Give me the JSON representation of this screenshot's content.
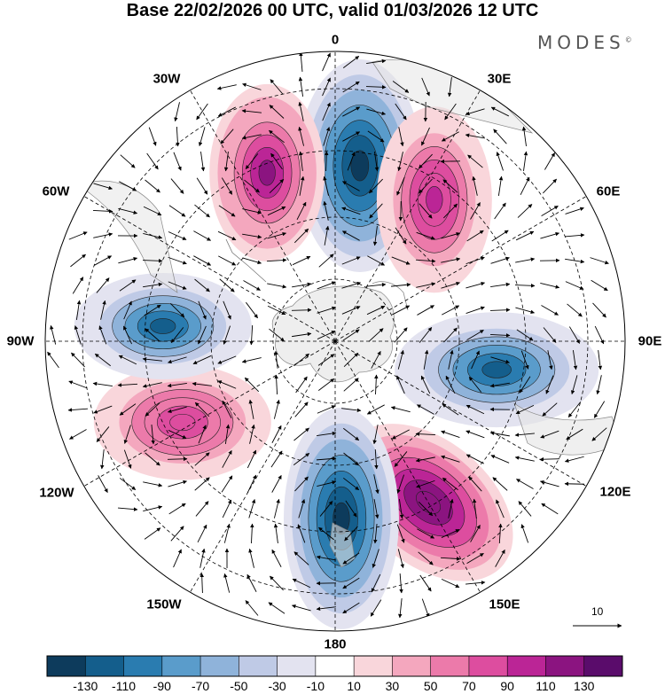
{
  "title": "Base 22/02/2026 00 UTC, valid 01/03/2026 12 UTC",
  "logo": "MODES",
  "logo_mark": "©",
  "longitude_labels": {
    "lon_0": "0",
    "lon_30e": "30E",
    "lon_60e": "60E",
    "lon_90e": "90E",
    "lon_120e": "120E",
    "lon_150e": "150E",
    "lon_180": "180",
    "lon_150w": "150W",
    "lon_120w": "120W",
    "lon_90w": "90W",
    "lon_60w": "60W",
    "lon_30w": "30W"
  },
  "reference_vector_label": "10",
  "colorbar": {
    "labels": [
      "-130",
      "-110",
      "-90",
      "-70",
      "-50",
      "-30",
      "-10",
      "10",
      "30",
      "50",
      "70",
      "90",
      "110",
      "130"
    ],
    "colors": [
      "#0d3b5c",
      "#145e8c",
      "#2a7cb0",
      "#5a9ccb",
      "#8fb3da",
      "#bfcae6",
      "#e3e3f0",
      "#ffffff",
      "#f9d6db",
      "#f4a7be",
      "#ec7aaa",
      "#dd4d9f",
      "#bb2596",
      "#8b1480",
      "#5a0c6b"
    ]
  },
  "chart_data": {
    "type": "polar-stereographic-map",
    "projection": "South polar stereographic",
    "base_time": "22/02/2026 00 UTC",
    "valid_time": "01/03/2026 12 UTC",
    "field": "anomaly (shaded) with wind vectors",
    "contour_levels": [
      -130,
      -110,
      -90,
      -70,
      -50,
      -30,
      -10,
      10,
      30,
      50,
      70,
      90,
      110,
      130
    ],
    "anomaly_centers": [
      {
        "sign": "negative",
        "peak": -130,
        "longitude_deg": 8
      },
      {
        "sign": "positive",
        "peak": 100,
        "longitude_deg": 35
      },
      {
        "sign": "negative",
        "peak": -110,
        "longitude_deg": 100
      },
      {
        "sign": "positive",
        "peak": 130,
        "longitude_deg": 150
      },
      {
        "sign": "negative",
        "peak": -130,
        "longitude_deg": 178
      },
      {
        "sign": "positive",
        "peak": 90,
        "longitude_deg": -118
      },
      {
        "sign": "negative",
        "peak": -110,
        "longitude_deg": -85
      },
      {
        "sign": "positive",
        "peak": 120,
        "longitude_deg": -22
      }
    ]
  }
}
